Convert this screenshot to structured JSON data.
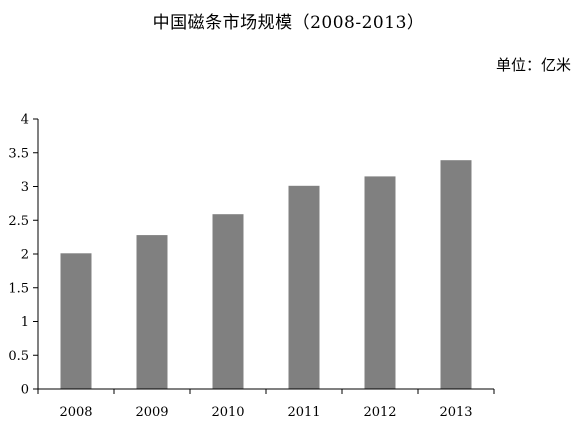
{
  "chart_data": {
    "type": "bar",
    "title": "中国磁条市场规模（2008-2013）",
    "unit_label": "单位：亿米",
    "categories": [
      "2008",
      "2009",
      "2010",
      "2011",
      "2012",
      "2013"
    ],
    "values": [
      2.01,
      2.28,
      2.59,
      3.01,
      3.15,
      3.39
    ],
    "ylim": [
      0,
      4
    ],
    "yticks": [
      "0",
      "0.5",
      "1",
      "1.5",
      "2",
      "2.5",
      "3",
      "3.5",
      "4"
    ],
    "bar_color": "#808080",
    "axis_color": "#000000",
    "grid": false,
    "legend": "none"
  }
}
